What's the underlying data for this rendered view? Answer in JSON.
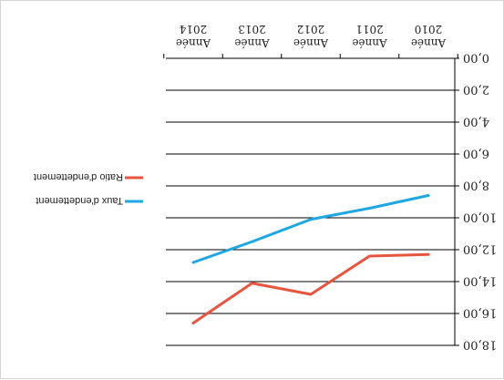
{
  "chart_data": {
    "type": "line",
    "title": "",
    "xlabel": "",
    "ylabel": "",
    "categories": [
      "Année 2010",
      "Année 2011",
      "Année 2012",
      "Année 2013",
      "Année 2014"
    ],
    "category_lines": [
      [
        "Année",
        "2010"
      ],
      [
        "Année",
        "2011"
      ],
      [
        "Année",
        "2012"
      ],
      [
        "Année",
        "2013"
      ],
      [
        "Année",
        "2014"
      ]
    ],
    "ylim": [
      0,
      18
    ],
    "yticks": [
      0,
      2,
      4,
      6,
      8,
      10,
      12,
      14,
      16,
      18
    ],
    "ytick_labels": [
      "0,00",
      "2,00",
      "4,00",
      "6,00",
      "8,00",
      "10,00",
      "12,00",
      "14,00",
      "16,00",
      "18,00"
    ],
    "grid": true,
    "legend_position": "right",
    "orientation": "rotated-180",
    "series": [
      {
        "name": "Taux d'endettement",
        "color": "#1ea7e1",
        "values": [
          8.6,
          9.4,
          10.1,
          11.5,
          12.8
        ]
      },
      {
        "name": "Ratio d'endettement",
        "color": "#e8553f",
        "values": [
          12.3,
          12.4,
          14.8,
          14.1,
          16.6
        ]
      }
    ]
  }
}
